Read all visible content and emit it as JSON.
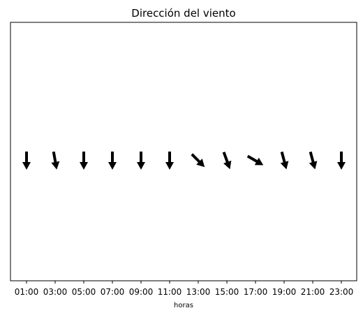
{
  "chart_data": {
    "type": "quiver",
    "title": "Dirección del viento",
    "xlabel": "horas",
    "ylabel": "",
    "grid": false,
    "x": [
      "01:00",
      "03:00",
      "05:00",
      "07:00",
      "09:00",
      "11:00",
      "13:00",
      "15:00",
      "17:00",
      "19:00",
      "21:00",
      "23:00"
    ],
    "direction_deg": [
      180,
      170,
      180,
      180,
      180,
      180,
      135,
      160,
      120,
      165,
      165,
      180
    ],
    "arrow_color": "#000000"
  }
}
